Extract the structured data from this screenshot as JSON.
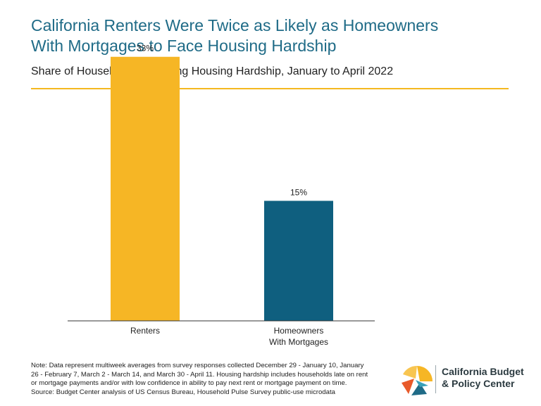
{
  "title_lines": [
    "California Renters Were Twice as Likely as Homeowners",
    "With Mortgages to Face Housing Hardship"
  ],
  "subtitle": "Share of Households Reporting Housing Hardship, January to April 2022",
  "chart_data": {
    "type": "bar",
    "title": "California Renters Were Twice as Likely as Homeowners With Mortgages to Face Housing Hardship",
    "subtitle": "Share of Households Reporting Housing Hardship, January to April 2022",
    "categories": [
      [
        "Renters"
      ],
      [
        "Homeowners",
        "With Mortgages"
      ]
    ],
    "values": [
      33,
      15
    ],
    "value_labels": [
      "33%",
      "15%"
    ],
    "colors": [
      "#f6b625",
      "#0f5f7f"
    ],
    "ylim": [
      0,
      35
    ],
    "grid": false,
    "legend": "none"
  },
  "note_lines": [
    "Note: Data represent multiweek averages from survey responses collected  December 29 - January 10, January",
    "26 - February 7, March 2 - March 14, and March 30 - April 11. Housing hardship includes households late on rent",
    "or mortgage payments and/or with low confidence in ability to pay next rent or mortgage payment on time.",
    "Source: Budget Center analysis of US Census Bureau, Household Pulse Survey public-use microdata"
  ],
  "logo": {
    "line1": "California Budget",
    "line2": "& Policy Center",
    "icon": "cbpc-pinwheel-logo-icon",
    "colors": [
      "#f6b625",
      "#e85a2a",
      "#1f6b87",
      "#3aa0b8"
    ]
  }
}
